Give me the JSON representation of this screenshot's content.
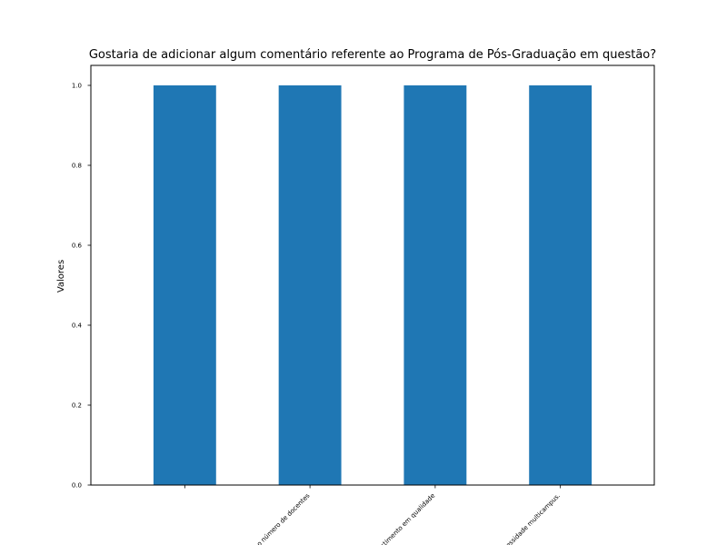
{
  "chart_data": {
    "type": "bar",
    "title": "Gostaria de adicionar algum comentário referente ao Programa de Pós-Graduação em questão?",
    "xlabel": "",
    "ylabel": "Valores",
    "categories": [
      "",
      "Aumentar o número de docentes",
      "Investimento em qualidade",
      "Necessidade multicampus."
    ],
    "values": [
      1.0,
      1.0,
      1.0,
      1.0
    ],
    "ylim": [
      0.0,
      1.05
    ],
    "yticks": [
      "0.0",
      "0.2",
      "0.4",
      "0.6",
      "0.8",
      "1.0"
    ],
    "bar_color": "#1f77b4",
    "grid": false,
    "legend": "none"
  }
}
